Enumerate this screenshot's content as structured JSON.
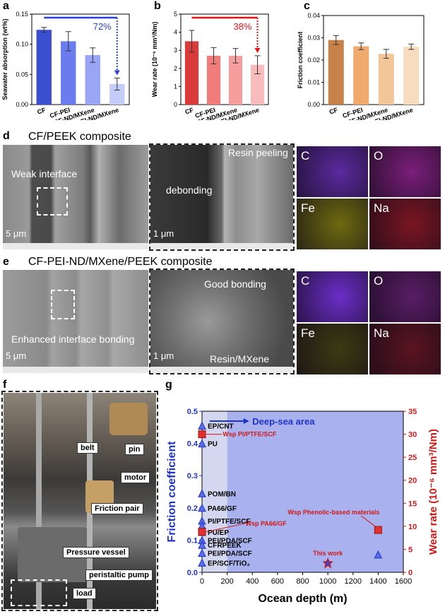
{
  "panels": {
    "a": {
      "letter": "a"
    },
    "b": {
      "letter": "b"
    },
    "c": {
      "letter": "c"
    },
    "d": {
      "letter": "d",
      "title": "CF/PEEK composite",
      "img1_labels": [
        "Weak interface"
      ],
      "img1_scale": "5 μm",
      "img2_labels": [
        "debonding",
        "Resin peeling"
      ],
      "img2_scale": "1 μm"
    },
    "e": {
      "letter": "e",
      "title": "CF-PEI-ND/MXene/PEEK composite",
      "img1_labels": [
        "Enhanced interface bonding"
      ],
      "img1_scale": "5 μm",
      "img2_labels": [
        "Good bonding",
        "Resin/MXene"
      ],
      "img2_scale": "1 μm"
    },
    "f": {
      "letter": "f",
      "labels": [
        "belt",
        "pin",
        "motor",
        "Friction pair",
        "Pressure vessel",
        "peristaltic pump",
        "load"
      ]
    },
    "g": {
      "letter": "g"
    }
  },
  "eds": {
    "d": [
      {
        "el": "C",
        "color": "#5a2a9e"
      },
      {
        "el": "O",
        "color": "#7a1e7a"
      },
      {
        "el": "Fe",
        "color": "#6d6a10"
      },
      {
        "el": "Na",
        "color": "#7a1622"
      }
    ],
    "e": [
      {
        "el": "C",
        "color": "#6b2ec8"
      },
      {
        "el": "O",
        "color": "#5a1d66"
      },
      {
        "el": "Fe",
        "color": "#3c3a12"
      },
      {
        "el": "Na",
        "color": "#5a1420"
      }
    ]
  },
  "chart_data": [
    {
      "type": "bar",
      "panel": "a",
      "categories": [
        "CF",
        "CF-PEI",
        "CF-ND/MXene",
        "CF-PEI-ND/MXene"
      ],
      "values": [
        0.124,
        0.105,
        0.082,
        0.034
      ],
      "errors": [
        0.004,
        0.016,
        0.012,
        0.01
      ],
      "colors": [
        "#3b4fd3",
        "#6b7cef",
        "#9aa6f5",
        "#c4ccfa"
      ],
      "ylabel": "Seawater absorption (wt%)",
      "ylim": [
        0,
        0.15
      ],
      "yticks": [
        "0.00",
        "0.05",
        "0.10",
        "0.15"
      ],
      "annotation": "72%",
      "accent": "#2b3fd0"
    },
    {
      "type": "bar",
      "panel": "b",
      "categories": [
        "CF",
        "CF-PEI",
        "CF-ND/MXene",
        "CF-PEI-ND/MXene"
      ],
      "values": [
        3.5,
        2.7,
        2.7,
        2.2
      ],
      "errors": [
        0.6,
        0.45,
        0.4,
        0.5
      ],
      "colors": [
        "#d93a3a",
        "#f07c7c",
        "#f49e9e",
        "#f8bcbc"
      ],
      "ylabel": "Wear rate (10⁻⁶ mm³/Nm)",
      "ylim": [
        0,
        5
      ],
      "yticks": [
        "0",
        "1",
        "2",
        "3",
        "4",
        "5"
      ],
      "annotation": "38%",
      "accent": "#e01515"
    },
    {
      "type": "bar",
      "panel": "c",
      "categories": [
        "CF",
        "CF-PEI",
        "CF-ND/MXene",
        "CF-PEI-ND/MXene"
      ],
      "values": [
        0.029,
        0.0262,
        0.0228,
        0.026
      ],
      "errors": [
        0.002,
        0.0015,
        0.002,
        0.0012
      ],
      "colors": [
        "#c9814a",
        "#f0aa6e",
        "#f5c59a",
        "#f8dcc0"
      ],
      "ylabel": "Friction coefficient",
      "ylim": [
        0,
        0.04
      ],
      "yticks": [
        "0.00",
        "0.01",
        "0.02",
        "0.03",
        "0.04"
      ]
    },
    {
      "type": "scatter",
      "panel": "g",
      "xlabel": "Ocean depth (m)",
      "ylabel_left": "Friction coefficient",
      "ylabel_right": "Wear rate (10⁻⁶ mm³/Nm)",
      "xlim": [
        0,
        1600
      ],
      "ylim_left": [
        0,
        0.5
      ],
      "ylim_right": [
        0,
        35
      ],
      "xticks": [
        "0",
        "200",
        "400",
        "600",
        "800",
        "1000",
        "1200",
        "1400",
        "1600"
      ],
      "yticks_left": [
        "0.0",
        "0.1",
        "0.2",
        "0.3",
        "0.4",
        "0.5"
      ],
      "yticks_right": [
        "0",
        "5",
        "10",
        "15",
        "20",
        "25",
        "30",
        "35"
      ],
      "region_label": "Deep-sea area",
      "friction_points": [
        {
          "x": 0,
          "y": 0.455,
          "label": "EP/CNT"
        },
        {
          "x": 0,
          "y": 0.4,
          "label": "PU"
        },
        {
          "x": 0,
          "y": 0.245,
          "label": "POM/BN"
        },
        {
          "x": 0,
          "y": 0.2,
          "label": "PA66/GF"
        },
        {
          "x": 0,
          "y": 0.16,
          "label": "PI/PTFE/SCF"
        },
        {
          "x": 0,
          "y": 0.145,
          "label": ""
        },
        {
          "x": 0,
          "y": 0.125,
          "label": "PU/EP"
        },
        {
          "x": 0,
          "y": 0.1,
          "label": "PEI/PDA/SCF"
        },
        {
          "x": 0,
          "y": 0.085,
          "label": "CFRPEEK"
        },
        {
          "x": 0,
          "y": 0.06,
          "label": "PEI/PDA/SCF"
        },
        {
          "x": 0,
          "y": 0.03,
          "label": "EP/SCF/TiO₂"
        },
        {
          "x": 1400,
          "y": 0.055,
          "label": ""
        },
        {
          "x": 1000,
          "y": 0.028,
          "label": ""
        }
      ],
      "wear_points": [
        {
          "x": 0,
          "y": 30.0,
          "label": "Wsp PI/PTFE/SCF"
        },
        {
          "x": 0,
          "y": 8.8,
          "label": "Wsp PA66/GF"
        },
        {
          "x": 1400,
          "y": 9.2,
          "label": "Wsp Phenolic-based materials"
        },
        {
          "x": 1000,
          "y": 2.0,
          "label": "This work"
        }
      ]
    }
  ]
}
